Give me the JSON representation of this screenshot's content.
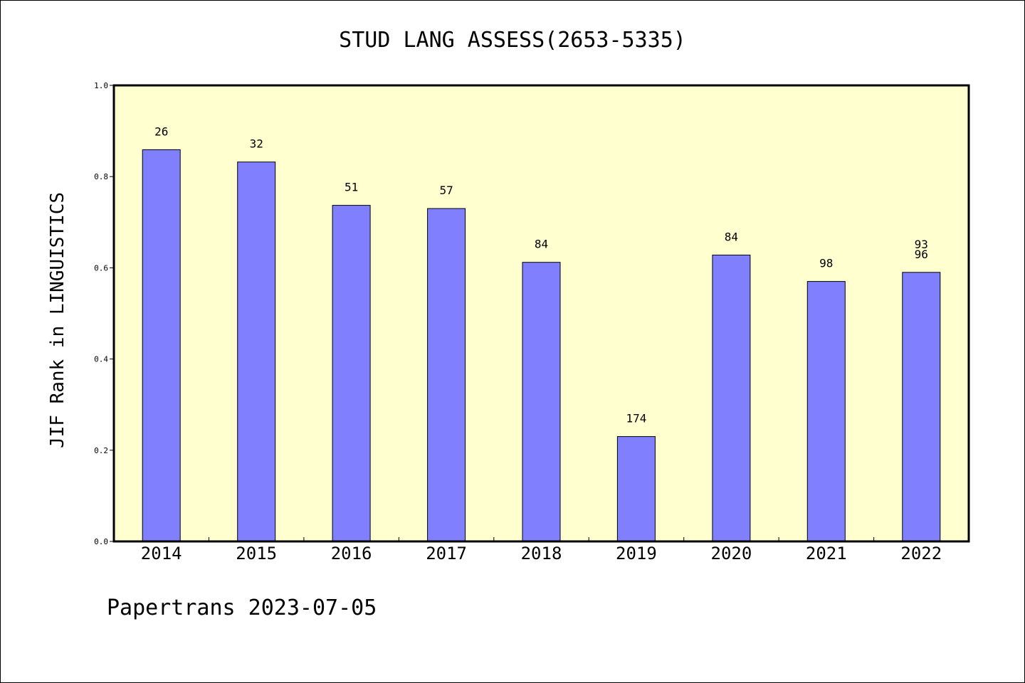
{
  "chart_data": {
    "type": "bar",
    "title": "STUD LANG ASSESS(2653-5335)",
    "ylabel": "JIF Rank in LINGUISTICS",
    "xlabel": "",
    "categories": [
      "2014",
      "2015",
      "2016",
      "2017",
      "2018",
      "2019",
      "2020",
      "2021",
      "2022"
    ],
    "values": [
      0.859,
      0.832,
      0.737,
      0.73,
      0.612,
      0.23,
      0.628,
      0.57,
      0.59
    ],
    "data_labels": [
      [
        "26"
      ],
      [
        "32"
      ],
      [
        "51"
      ],
      [
        "57"
      ],
      [
        "84"
      ],
      [
        "174"
      ],
      [
        "84"
      ],
      [
        "98"
      ],
      [
        "93",
        "96"
      ]
    ],
    "ylim": [
      0,
      1.0
    ],
    "yticks": [
      "0.0",
      "0.2",
      "0.4",
      "0.6",
      "0.8",
      "1.0"
    ],
    "ytick_values": [
      0,
      0.2,
      0.4,
      0.6,
      0.8,
      1.0
    ],
    "grid": false,
    "colors": {
      "plot_background": "#ffffd0",
      "bar_fill": "#8080ff",
      "bar_stroke": "#000000"
    }
  },
  "footer": {
    "text": "Papertrans 2023-07-05"
  }
}
